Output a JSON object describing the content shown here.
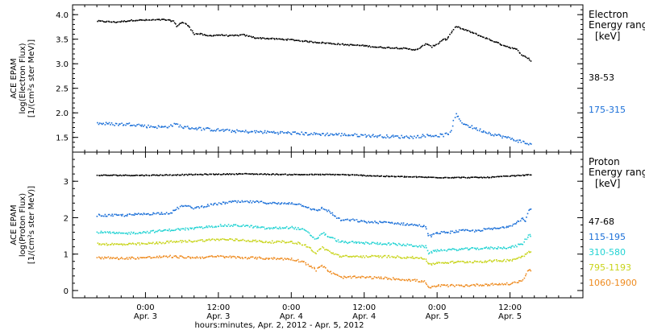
{
  "chart_data": [
    {
      "type": "scatter",
      "ylabel_lines": [
        "ACE EPAM",
        "log(Electron Flux)",
        "[1/(cm²s ster MeV)]"
      ],
      "ylim": [
        1.2,
        4.2
      ],
      "yticks": [
        {
          "v": 1.5,
          "label": "1.5"
        },
        {
          "v": 2.0,
          "label": "2.0"
        },
        {
          "v": 2.5,
          "label": "2.5"
        },
        {
          "v": 3.0,
          "label": "3.0"
        },
        {
          "v": 3.5,
          "label": "3.5"
        },
        {
          "v": 4.0,
          "label": "4.0"
        }
      ],
      "legend_title": [
        "Electron",
        "Energy ranges",
        "[keV]"
      ],
      "series": [
        {
          "name": "38-53",
          "color": "#000000",
          "points": [
            [
              -8,
              3.88
            ],
            [
              -5,
              3.86
            ],
            [
              -2,
              3.9
            ],
            [
              0,
              3.9
            ],
            [
              3,
              3.91
            ],
            [
              4.5,
              3.88
            ],
            [
              5,
              3.78
            ],
            [
              6,
              3.86
            ],
            [
              7,
              3.78
            ],
            [
              8,
              3.62
            ],
            [
              9,
              3.62
            ],
            [
              10,
              3.58
            ],
            [
              12,
              3.6
            ],
            [
              14,
              3.58
            ],
            [
              16,
              3.6
            ],
            [
              18,
              3.54
            ],
            [
              21,
              3.52
            ],
            [
              24,
              3.5
            ],
            [
              27,
              3.46
            ],
            [
              30,
              3.43
            ],
            [
              33,
              3.4
            ],
            [
              36,
              3.38
            ],
            [
              38,
              3.35
            ],
            [
              40,
              3.34
            ],
            [
              42,
              3.33
            ],
            [
              44,
              3.3
            ],
            [
              45,
              3.32
            ],
            [
              46,
              3.42
            ],
            [
              47,
              3.36
            ],
            [
              48,
              3.42
            ],
            [
              49,
              3.52
            ],
            [
              49.5,
              3.5
            ],
            [
              50,
              3.6
            ],
            [
              51,
              3.78
            ],
            [
              52,
              3.72
            ],
            [
              53,
              3.68
            ],
            [
              55,
              3.58
            ],
            [
              57,
              3.48
            ],
            [
              59,
              3.38
            ],
            [
              61,
              3.3
            ],
            [
              62,
              3.18
            ],
            [
              63,
              3.12
            ],
            [
              63.5,
              3.05
            ]
          ]
        },
        {
          "name": "175-315",
          "color": "#1a6fd8",
          "points": [
            [
              -8,
              1.8
            ],
            [
              -5,
              1.78
            ],
            [
              -2,
              1.78
            ],
            [
              0,
              1.74
            ],
            [
              3,
              1.72
            ],
            [
              5,
              1.78
            ],
            [
              6,
              1.72
            ],
            [
              8,
              1.7
            ],
            [
              12,
              1.66
            ],
            [
              16,
              1.63
            ],
            [
              20,
              1.62
            ],
            [
              24,
              1.6
            ],
            [
              28,
              1.58
            ],
            [
              32,
              1.57
            ],
            [
              36,
              1.55
            ],
            [
              40,
              1.53
            ],
            [
              44,
              1.52
            ],
            [
              46,
              1.55
            ],
            [
              48,
              1.55
            ],
            [
              49,
              1.56
            ],
            [
              50,
              1.6
            ],
            [
              51,
              1.98
            ],
            [
              52,
              1.82
            ],
            [
              53,
              1.75
            ],
            [
              55,
              1.66
            ],
            [
              57,
              1.58
            ],
            [
              59,
              1.52
            ],
            [
              61,
              1.45
            ],
            [
              62,
              1.42
            ],
            [
              63,
              1.38
            ],
            [
              63.5,
              1.35
            ]
          ]
        }
      ]
    },
    {
      "type": "scatter",
      "ylabel_lines": [
        "ACE EPAM",
        "log(Proton Flux)",
        "[1/(cm²s ster MeV)]"
      ],
      "ylim": [
        -0.2,
        3.8
      ],
      "yticks": [
        {
          "v": 0,
          "label": "0"
        },
        {
          "v": 1,
          "label": "1"
        },
        {
          "v": 2,
          "label": "2"
        },
        {
          "v": 3,
          "label": "3"
        }
      ],
      "legend_title": [
        "Proton",
        "Energy ranges",
        "[keV]"
      ],
      "series": [
        {
          "name": "47-68",
          "color": "#000000",
          "points": [
            [
              -8,
              3.18
            ],
            [
              0,
              3.18
            ],
            [
              8,
              3.2
            ],
            [
              16,
              3.22
            ],
            [
              24,
              3.2
            ],
            [
              32,
              3.2
            ],
            [
              40,
              3.15
            ],
            [
              48,
              3.12
            ],
            [
              56,
              3.12
            ],
            [
              62,
              3.18
            ],
            [
              63.5,
              3.2
            ]
          ]
        },
        {
          "name": "115-195",
          "color": "#1a6fd8",
          "points": [
            [
              -8,
              2.08
            ],
            [
              -4,
              2.08
            ],
            [
              0,
              2.12
            ],
            [
              4,
              2.15
            ],
            [
              6,
              2.35
            ],
            [
              8,
              2.28
            ],
            [
              10,
              2.35
            ],
            [
              14,
              2.45
            ],
            [
              18,
              2.45
            ],
            [
              22,
              2.4
            ],
            [
              24,
              2.42
            ],
            [
              26,
              2.35
            ],
            [
              28,
              2.2
            ],
            [
              29,
              2.28
            ],
            [
              30,
              2.2
            ],
            [
              32,
              1.95
            ],
            [
              34,
              1.95
            ],
            [
              36,
              1.9
            ],
            [
              40,
              1.88
            ],
            [
              44,
              1.82
            ],
            [
              46,
              1.78
            ],
            [
              46.5,
              1.5
            ],
            [
              48,
              1.6
            ],
            [
              50,
              1.62
            ],
            [
              52,
              1.66
            ],
            [
              54,
              1.65
            ],
            [
              56,
              1.7
            ],
            [
              58,
              1.72
            ],
            [
              60,
              1.8
            ],
            [
              62,
              2.0
            ],
            [
              62.5,
              1.9
            ],
            [
              63,
              2.25
            ],
            [
              63.5,
              2.22
            ]
          ]
        },
        {
          "name": "310-580",
          "color": "#22d3d3",
          "points": [
            [
              -8,
              1.62
            ],
            [
              -4,
              1.58
            ],
            [
              0,
              1.62
            ],
            [
              4,
              1.68
            ],
            [
              8,
              1.72
            ],
            [
              12,
              1.8
            ],
            [
              16,
              1.8
            ],
            [
              20,
              1.72
            ],
            [
              24,
              1.75
            ],
            [
              26,
              1.68
            ],
            [
              28,
              1.42
            ],
            [
              29,
              1.6
            ],
            [
              30,
              1.5
            ],
            [
              32,
              1.35
            ],
            [
              36,
              1.32
            ],
            [
              40,
              1.3
            ],
            [
              44,
              1.25
            ],
            [
              46,
              1.22
            ],
            [
              46.5,
              1.05
            ],
            [
              48,
              1.12
            ],
            [
              52,
              1.15
            ],
            [
              56,
              1.18
            ],
            [
              60,
              1.2
            ],
            [
              62,
              1.3
            ],
            [
              63,
              1.55
            ],
            [
              63.5,
              1.5
            ]
          ]
        },
        {
          "name": "795-1193",
          "color": "#c8d41a",
          "points": [
            [
              -8,
              1.3
            ],
            [
              -4,
              1.28
            ],
            [
              0,
              1.3
            ],
            [
              4,
              1.35
            ],
            [
              8,
              1.38
            ],
            [
              12,
              1.42
            ],
            [
              16,
              1.4
            ],
            [
              20,
              1.35
            ],
            [
              24,
              1.35
            ],
            [
              26,
              1.28
            ],
            [
              28,
              1.05
            ],
            [
              29,
              1.2
            ],
            [
              30,
              1.1
            ],
            [
              32,
              0.95
            ],
            [
              36,
              0.95
            ],
            [
              40,
              0.95
            ],
            [
              44,
              0.92
            ],
            [
              46,
              0.9
            ],
            [
              46.5,
              0.72
            ],
            [
              48,
              0.78
            ],
            [
              52,
              0.8
            ],
            [
              56,
              0.82
            ],
            [
              60,
              0.85
            ],
            [
              62,
              0.95
            ],
            [
              63,
              1.1
            ],
            [
              63.5,
              1.08
            ]
          ]
        },
        {
          "name": "1060-1900",
          "color": "#ee8a1e",
          "points": [
            [
              -8,
              0.92
            ],
            [
              -4,
              0.9
            ],
            [
              0,
              0.92
            ],
            [
              4,
              0.95
            ],
            [
              8,
              0.92
            ],
            [
              12,
              0.95
            ],
            [
              16,
              0.92
            ],
            [
              20,
              0.9
            ],
            [
              24,
              0.88
            ],
            [
              26,
              0.8
            ],
            [
              28,
              0.58
            ],
            [
              29,
              0.72
            ],
            [
              30,
              0.55
            ],
            [
              32,
              0.38
            ],
            [
              36,
              0.38
            ],
            [
              40,
              0.35
            ],
            [
              44,
              0.3
            ],
            [
              46,
              0.25
            ],
            [
              46.5,
              0.08
            ],
            [
              48,
              0.15
            ],
            [
              52,
              0.15
            ],
            [
              56,
              0.18
            ],
            [
              60,
              0.2
            ],
            [
              62,
              0.3
            ],
            [
              63,
              0.6
            ],
            [
              63.5,
              0.58
            ]
          ]
        }
      ]
    }
  ],
  "x_axis": {
    "xlim": [
      -12,
      72
    ],
    "minor_step": 2,
    "major_step": 12,
    "ticks": [
      {
        "v": 0,
        "time": "0:00",
        "date": "Apr. 3"
      },
      {
        "v": 12,
        "time": "12:00",
        "date": "Apr. 3"
      },
      {
        "v": 24,
        "time": "0:00",
        "date": "Apr. 4"
      },
      {
        "v": 36,
        "time": "12:00",
        "date": "Apr. 4"
      },
      {
        "v": 48,
        "time": "0:00",
        "date": "Apr. 5"
      },
      {
        "v": 60,
        "time": "12:00",
        "date": "Apr. 5"
      }
    ],
    "title": "hours:minutes, Apr.  2, 2012 - Apr.  5, 2012"
  }
}
